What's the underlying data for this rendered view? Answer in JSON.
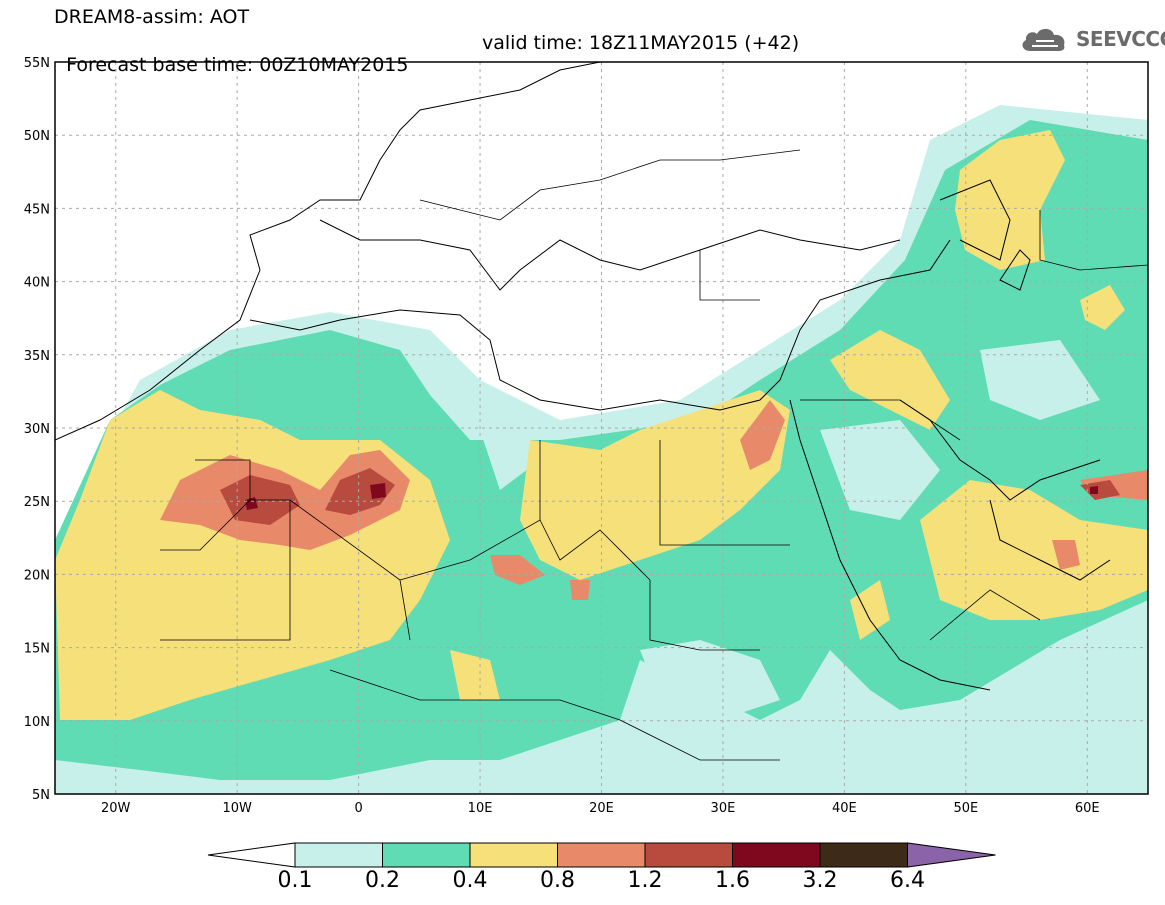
{
  "header": {
    "title_line1": "DREAM8-assim: AOT",
    "forecast_base": "Forecast base time: 00Z10MAY2015",
    "valid_time": "valid time: 18Z11MAY2015 (+42)"
  },
  "logo": {
    "text": "SEEVCCC",
    "icon": "cloud-icon"
  },
  "map": {
    "lat_ticks": [
      "55N",
      "50N",
      "45N",
      "40N",
      "35N",
      "30N",
      "25N",
      "20N",
      "15N",
      "10N",
      "5N"
    ],
    "lon_ticks": [
      "20W",
      "10W",
      "0",
      "10E",
      "20E",
      "30E",
      "40E",
      "50E",
      "60E"
    ],
    "lat_range": [
      5,
      55
    ],
    "lon_range": [
      -25,
      65
    ],
    "grid": true
  },
  "colorbar": {
    "labels": [
      "0.1",
      "0.2",
      "0.4",
      "0.8",
      "1.2",
      "1.6",
      "3.2",
      "6.4"
    ],
    "colors": [
      "#ffffff",
      "#c8f0ea",
      "#5fdcb4",
      "#f5e07a",
      "#e8896a",
      "#b84a3e",
      "#80081e",
      "#3e2a18",
      "#8a63a8"
    ]
  }
}
